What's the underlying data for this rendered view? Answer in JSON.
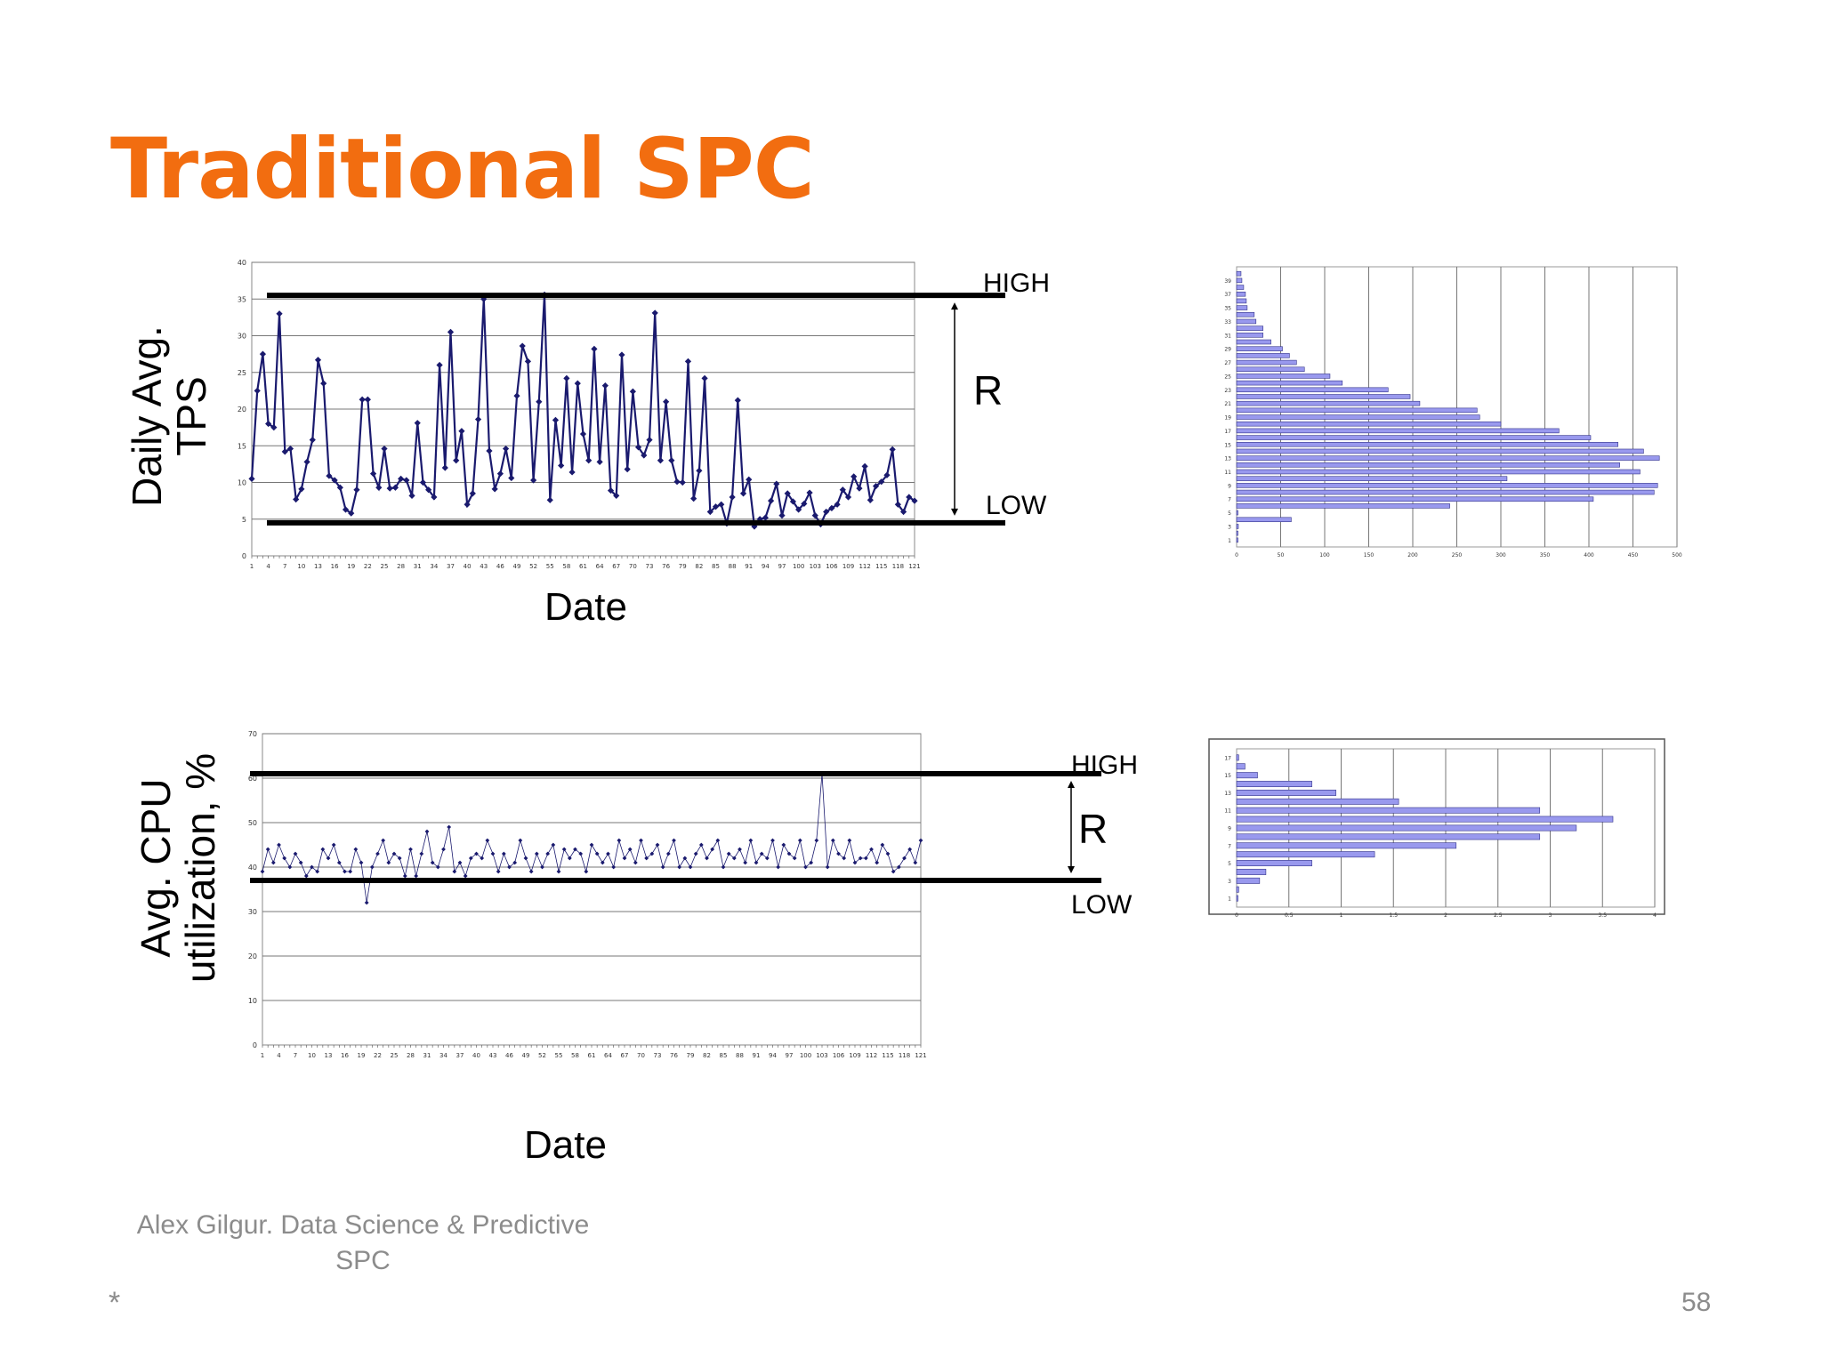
{
  "slide": {
    "title": "Traditional SPC",
    "footer_line1": "Alex Gilgur.  Data Science & Predictive",
    "footer_line2": "SPC",
    "footer_mark": "*",
    "page_number": "58"
  },
  "panels": {
    "top": {
      "ylabel_line1": "Daily Avg.",
      "ylabel_line2": "TPS",
      "xlabel": "Date",
      "high_label": "HIGH",
      "low_label": "LOW",
      "range_label": "R"
    },
    "bottom": {
      "ylabel_line1": "Avg. CPU",
      "ylabel_line2": "utilization, %",
      "xlabel": "Date",
      "high_label": "HIGH",
      "low_label": "LOW",
      "range_label": "R"
    }
  },
  "colors": {
    "title": "#f26d10",
    "series": "#1a1a6e",
    "hist_fill": "#9999ee",
    "hist_stroke": "#33338a",
    "control_line": "#000000",
    "footer": "#8c8c8c"
  },
  "chart_data": [
    {
      "id": "tps-run-chart",
      "type": "line",
      "series_marker": "diamond",
      "ylim": [
        0,
        40
      ],
      "yticks": [
        0,
        5,
        10,
        15,
        20,
        25,
        30,
        35,
        40
      ],
      "x_start": 1,
      "x_end": 121,
      "x_tick_step": 3,
      "control_limits": {
        "high": 35.5,
        "low": 4.5
      },
      "grid": "horizontal",
      "values": [
        10.5,
        22.5,
        27.5,
        18,
        17.5,
        33,
        14.2,
        14.6,
        7.7,
        9.1,
        12.8,
        15.8,
        26.7,
        23.5,
        10.9,
        10.3,
        9.3,
        6.3,
        5.8,
        9,
        21.3,
        21.3,
        11.2,
        9.3,
        14.6,
        9.2,
        9.3,
        10.5,
        10.3,
        8.2,
        18.1,
        10,
        9,
        8,
        26,
        12,
        30.5,
        13,
        17,
        7,
        8.5,
        18.6,
        35,
        14.3,
        9.1,
        11.2,
        14.6,
        10.6,
        21.8,
        28.6,
        26.5,
        10.3,
        21,
        35.6,
        7.6,
        18.5,
        12.3,
        24.2,
        11.4,
        23.5,
        16.6,
        13,
        28.2,
        12.8,
        23.2,
        8.9,
        8.2,
        27.4,
        11.8,
        22.4,
        14.8,
        13.7,
        15.8,
        33.1,
        13,
        21,
        13,
        10.1,
        10,
        26.5,
        7.8,
        11.6,
        24.2,
        6,
        6.7,
        7,
        4.4,
        8,
        21.2,
        8.5,
        10.4,
        4,
        5,
        5.2,
        7.5,
        9.8,
        5.5,
        8.5,
        7.4,
        6.3,
        7.1,
        8.6,
        5.5,
        4.3,
        6,
        6.5,
        7,
        9,
        8,
        10.8,
        9.2,
        12.2,
        7.6,
        9.5,
        10.1,
        11,
        14.5,
        7,
        6,
        8,
        7.5
      ]
    },
    {
      "id": "tps-histogram",
      "type": "bar",
      "orientation": "horizontal",
      "categories": [
        1,
        2,
        3,
        4,
        5,
        6,
        7,
        8,
        9,
        10,
        11,
        12,
        13,
        14,
        15,
        16,
        17,
        18,
        19,
        20,
        21,
        22,
        23,
        24,
        25,
        26,
        27,
        28,
        29,
        30,
        31,
        32,
        33,
        34,
        35,
        36,
        37,
        38,
        39,
        40
      ],
      "y_tick_labels": [
        1,
        3,
        5,
        7,
        9,
        11,
        13,
        15,
        17,
        19,
        21,
        23,
        25,
        27,
        29,
        31,
        33,
        35,
        37,
        39
      ],
      "values": [
        1,
        0,
        2,
        62,
        0,
        242,
        405,
        474,
        478,
        307,
        458,
        435,
        480,
        462,
        433,
        402,
        366,
        300,
        276,
        273,
        208,
        197,
        172,
        120,
        106,
        77,
        68,
        60,
        52,
        39,
        30,
        30,
        22,
        20,
        12,
        11,
        10,
        8,
        6,
        5
      ],
      "xlim": [
        0,
        500
      ],
      "xticks": [
        0,
        50,
        100,
        150,
        200,
        250,
        300,
        350,
        400,
        450,
        500
      ]
    },
    {
      "id": "cpu-run-chart",
      "type": "line",
      "series_marker": "diamond",
      "ylim": [
        0,
        70
      ],
      "yticks": [
        0,
        10,
        20,
        30,
        40,
        50,
        60,
        70
      ],
      "x_start": 1,
      "x_end": 121,
      "x_tick_step": 3,
      "control_limits": {
        "high": 61,
        "low": 37
      },
      "grid": "horizontal",
      "values": [
        39,
        44,
        41,
        45,
        42,
        40,
        43,
        41,
        38,
        40,
        39,
        44,
        42,
        45,
        41,
        39,
        39,
        44,
        41,
        32,
        40,
        43,
        46,
        41,
        43,
        42,
        38,
        44,
        38,
        43,
        48,
        41,
        40,
        44,
        49,
        39,
        41,
        38,
        42,
        43,
        42,
        46,
        43,
        39,
        43,
        40,
        41,
        46,
        42,
        39,
        43,
        40,
        43,
        45,
        39,
        44,
        42,
        44,
        43,
        39,
        45,
        43,
        41,
        43,
        40,
        46,
        42,
        44,
        41,
        46,
        42,
        43,
        45,
        40,
        43,
        46,
        40,
        42,
        40,
        43,
        45,
        42,
        44,
        46,
        40,
        43,
        42,
        44,
        41,
        46,
        41,
        43,
        42,
        46,
        40,
        45,
        43,
        42,
        46,
        40,
        41,
        46,
        61,
        40,
        46,
        43,
        42,
        46,
        41,
        42,
        42,
        44,
        41,
        45,
        43,
        39,
        40,
        42,
        44,
        41,
        46
      ]
    },
    {
      "id": "cpu-histogram",
      "type": "bar",
      "orientation": "horizontal",
      "categories": [
        1,
        2,
        3,
        4,
        5,
        6,
        7,
        8,
        9,
        10,
        11,
        12,
        13,
        14,
        15,
        16,
        17
      ],
      "y_tick_labels": [
        1,
        3,
        5,
        7,
        9,
        11,
        13,
        15,
        17
      ],
      "values": [
        0,
        0.02,
        0.22,
        0.28,
        0.72,
        1.32,
        2.1,
        2.9,
        3.25,
        3.6,
        2.9,
        1.55,
        0.95,
        0.72,
        0.2,
        0.08,
        0.02
      ],
      "xlim": [
        0,
        4
      ],
      "xticks": [
        "0",
        "0.5",
        "1",
        "1.5",
        "2",
        "2.5",
        "3",
        "3.5",
        "4"
      ]
    }
  ]
}
